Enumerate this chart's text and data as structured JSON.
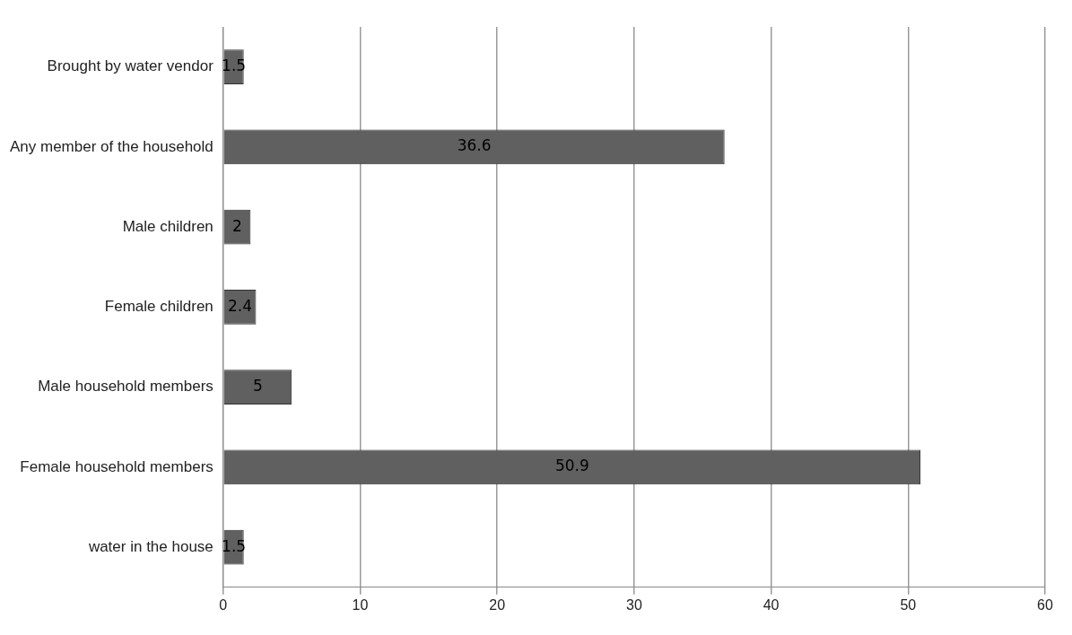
{
  "chart_data": {
    "type": "bar",
    "orientation": "horizontal",
    "categories": [
      "Brought by water vendor",
      "Any member of the household",
      "Male children",
      "Female children",
      "Male household members",
      "Female household members",
      "water in the house"
    ],
    "values": [
      1.5,
      36.6,
      2,
      2.4,
      5,
      50.9,
      1.5
    ],
    "color": "#606060",
    "xlim": [
      0,
      60
    ],
    "xticks": [
      0,
      10,
      20,
      30,
      40,
      50,
      60
    ],
    "grid": "x",
    "data_labels": true,
    "legend": false
  }
}
